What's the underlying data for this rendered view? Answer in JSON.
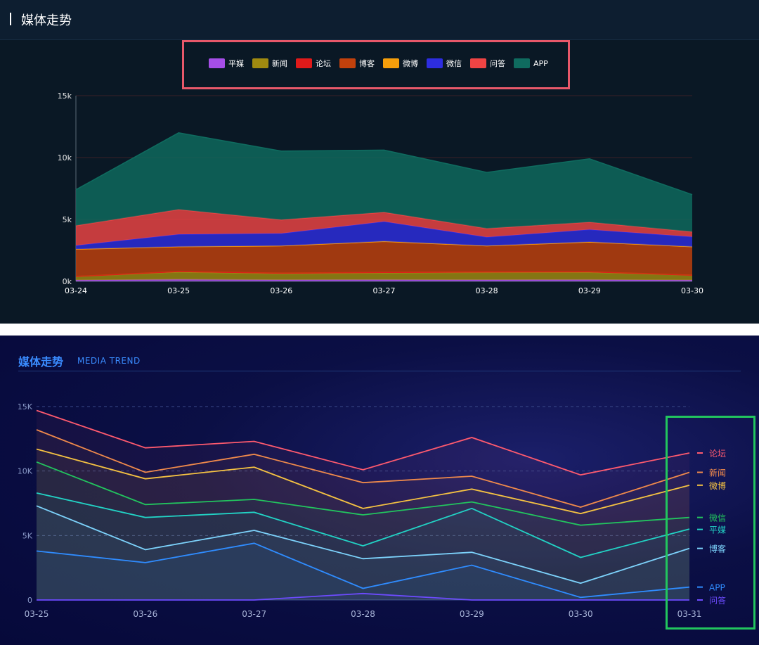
{
  "top": {
    "title": "媒体走势",
    "chart_data": {
      "type": "area",
      "stacked": true,
      "x": [
        "03-24",
        "03-25",
        "03-26",
        "03-27",
        "03-28",
        "03-29",
        "03-30"
      ],
      "y_ticks": [
        "0k",
        "5k",
        "10k",
        "15k"
      ],
      "ylim": [
        0,
        15000
      ],
      "legend_position": "top",
      "series": [
        {
          "name": "平媒",
          "color": "#a64ee8",
          "values": [
            100,
            150,
            120,
            130,
            120,
            130,
            100
          ]
        },
        {
          "name": "新闻",
          "color": "#a08a10",
          "values": [
            300,
            600,
            500,
            550,
            600,
            600,
            400
          ]
        },
        {
          "name": "论坛",
          "color": "#e01a1a",
          "values": [
            0,
            50,
            50,
            50,
            50,
            50,
            0
          ]
        },
        {
          "name": "博客",
          "color": "#c2410c",
          "values": [
            2200,
            2000,
            2200,
            2500,
            2100,
            2400,
            2300
          ]
        },
        {
          "name": "微博",
          "color": "#f59e0b",
          "values": [
            0,
            0,
            0,
            0,
            0,
            0,
            0
          ]
        },
        {
          "name": "微信",
          "color": "#2d2de0",
          "values": [
            300,
            1000,
            1000,
            1600,
            700,
            1000,
            800
          ]
        },
        {
          "name": "问答",
          "color": "#ef4444",
          "values": [
            1600,
            2000,
            1100,
            750,
            700,
            600,
            400
          ]
        },
        {
          "name": "APP",
          "color": "#0f6b5f",
          "values": [
            2900,
            6200,
            5550,
            5020,
            4530,
            5120,
            3000
          ]
        }
      ]
    }
  },
  "bottom": {
    "title": "媒体走势",
    "subtitle": "MEDIA TREND",
    "chart_data": {
      "type": "line",
      "x": [
        "03-25",
        "03-26",
        "03-27",
        "03-28",
        "03-29",
        "03-30",
        "03-31"
      ],
      "y_ticks": [
        "0",
        "5K",
        "10K",
        "15K"
      ],
      "ylim": [
        0,
        15000
      ],
      "legend_position": "right",
      "series": [
        {
          "name": "论坛",
          "color": "#ff5a6e",
          "values": [
            14700,
            11800,
            12300,
            10100,
            12600,
            9700,
            11400
          ]
        },
        {
          "name": "新闻",
          "color": "#f08a4b",
          "values": [
            13200,
            9900,
            11300,
            9100,
            9600,
            7200,
            9900
          ]
        },
        {
          "name": "微博",
          "color": "#f5c242",
          "values": [
            11700,
            9400,
            10300,
            7100,
            8600,
            6700,
            8900
          ]
        },
        {
          "name": "微信",
          "color": "#22c55e",
          "values": [
            10700,
            7400,
            7800,
            6600,
            7600,
            5800,
            6400
          ]
        },
        {
          "name": "平媒",
          "color": "#22d3c5",
          "values": [
            8300,
            6400,
            6800,
            4200,
            7100,
            3300,
            5500
          ]
        },
        {
          "name": "博客",
          "color": "#7dd3fc",
          "values": [
            7300,
            3900,
            5400,
            3200,
            3700,
            1300,
            4000
          ]
        },
        {
          "name": "APP",
          "color": "#2f8cff",
          "values": [
            3800,
            2900,
            4400,
            900,
            2700,
            200,
            1000
          ]
        },
        {
          "name": "问答",
          "color": "#6d4bff",
          "values": [
            0,
            0,
            0,
            500,
            0,
            0,
            0
          ]
        }
      ]
    }
  }
}
